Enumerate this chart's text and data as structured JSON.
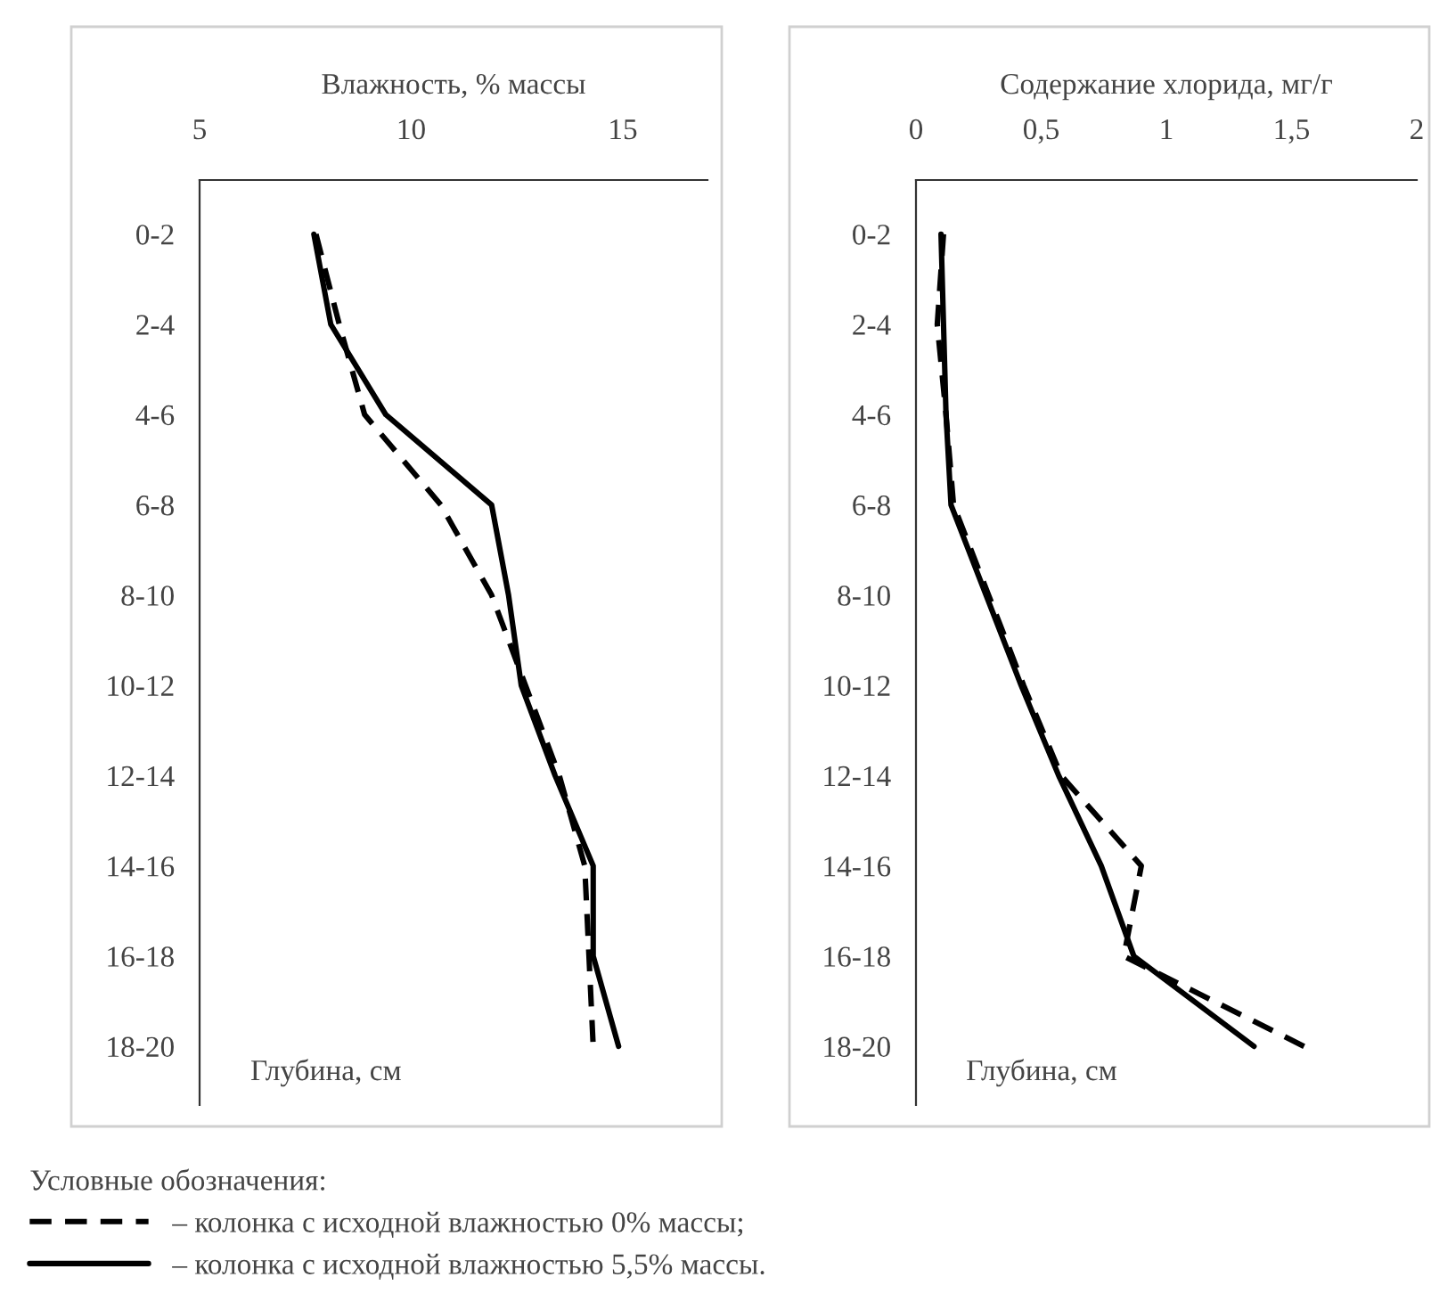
{
  "chart_data": [
    {
      "type": "line",
      "orientation": "horizontal",
      "xlabel": "Влажность, % массы",
      "ylabel": "Глубина, см",
      "categories": [
        "0-2",
        "2-4",
        "4-6",
        "6-8",
        "8-10",
        "10-12",
        "12-14",
        "14-16",
        "16-18",
        "18-20"
      ],
      "xlim": [
        5,
        17
      ],
      "xticks": [
        5,
        10,
        15
      ],
      "legend": "bottom",
      "legend_title": "Условные обозначения:",
      "series": [
        {
          "name": "– колонка с исходной влажностью 0% массы;",
          "color": "#000000",
          "line_style": "dashed",
          "values": [
            7.75,
            8.3,
            8.9,
            10.7,
            11.9,
            12.7,
            13.5,
            14.1,
            14.2,
            14.3
          ]
        },
        {
          "name": "– колонка с исходной влажностью 5,5% массы.",
          "color": "#000000",
          "line_style": "solid",
          "values": [
            7.7,
            8.1,
            9.4,
            11.9,
            12.3,
            12.6,
            13.4,
            14.3,
            14.3,
            14.9
          ]
        }
      ]
    },
    {
      "type": "line",
      "orientation": "horizontal",
      "xlabel": "Содержание хлорида, мг/г",
      "ylabel": "Глубина, см",
      "categories": [
        "0-2",
        "2-4",
        "4-6",
        "6-8",
        "8-10",
        "10-12",
        "12-14",
        "14-16",
        "16-18",
        "18-20"
      ],
      "xlim": [
        0,
        2
      ],
      "xticks": [
        0,
        {
          "value": 0.5,
          "label": "0,5"
        },
        1,
        {
          "value": 1.5,
          "label": "1,5"
        },
        2
      ],
      "series": [
        {
          "color": "#000000",
          "line_style": "dashed",
          "values": [
            0.11,
            0.085,
            0.12,
            0.15,
            0.29,
            0.43,
            0.58,
            0.9,
            0.83,
            1.55
          ]
        },
        {
          "color": "#000000",
          "line_style": "solid",
          "values": [
            0.1,
            0.11,
            0.12,
            0.14,
            0.28,
            0.42,
            0.57,
            0.74,
            0.87,
            1.35
          ]
        }
      ]
    }
  ]
}
